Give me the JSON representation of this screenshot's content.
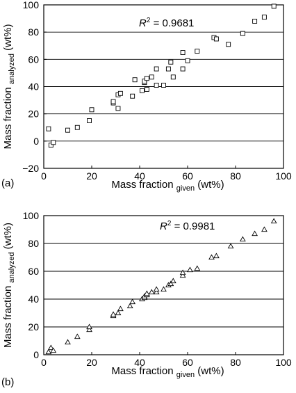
{
  "chart_data": [
    {
      "panel_label": "(a)",
      "type": "scatter",
      "marker": "square",
      "annotation": {
        "prefix": "R",
        "sup": "2",
        "value": " = 0.9681"
      },
      "xlabel": {
        "main": "Mass fraction ",
        "sub": "given",
        "unit": " (wt%)"
      },
      "ylabel": {
        "main": "Mass fraction ",
        "sub": "analyzed",
        "unit": " (wt%)"
      },
      "xlim": [
        0,
        100
      ],
      "ylim": [
        -20,
        100
      ],
      "xticks": [
        0,
        20,
        40,
        60,
        80,
        100
      ],
      "yticks": [
        -20,
        0,
        20,
        40,
        60,
        80,
        100
      ],
      "grid": "horizontal",
      "points": [
        [
          2,
          9
        ],
        [
          3,
          -3
        ],
        [
          4,
          -1
        ],
        [
          10,
          8
        ],
        [
          14,
          10
        ],
        [
          19,
          15
        ],
        [
          20,
          23
        ],
        [
          29,
          28
        ],
        [
          29,
          29
        ],
        [
          31,
          34
        ],
        [
          31,
          24
        ],
        [
          32,
          35
        ],
        [
          37,
          33
        ],
        [
          38,
          45
        ],
        [
          41,
          37
        ],
        [
          42,
          43
        ],
        [
          42,
          44
        ],
        [
          43,
          38
        ],
        [
          43,
          46
        ],
        [
          45,
          47
        ],
        [
          47,
          53
        ],
        [
          47,
          41
        ],
        [
          50,
          41
        ],
        [
          52,
          53
        ],
        [
          53,
          58
        ],
        [
          54,
          47
        ],
        [
          58,
          53
        ],
        [
          58,
          65
        ],
        [
          60,
          59
        ],
        [
          64,
          66
        ],
        [
          71,
          76
        ],
        [
          72,
          75
        ],
        [
          77,
          71
        ],
        [
          83,
          79
        ],
        [
          88,
          88
        ],
        [
          92,
          91
        ],
        [
          96,
          99
        ]
      ]
    },
    {
      "panel_label": "(b)",
      "type": "scatter",
      "marker": "triangle",
      "annotation": {
        "prefix": "R",
        "sup": "2",
        "value": " = 0.9981"
      },
      "xlabel": {
        "main": "Mass fraction ",
        "sub": "given",
        "unit": " (wt%)"
      },
      "ylabel": {
        "main": "Mass fraction ",
        "sub": "analyzed",
        "unit": " (wt%)"
      },
      "xlim": [
        0,
        100
      ],
      "ylim": [
        0,
        100
      ],
      "xticks": [
        0,
        20,
        40,
        60,
        80,
        100
      ],
      "yticks": [
        0,
        20,
        40,
        60,
        80,
        100
      ],
      "grid": "horizontal",
      "points": [
        [
          2,
          2
        ],
        [
          3,
          5
        ],
        [
          4,
          3
        ],
        [
          10,
          9
        ],
        [
          14,
          13
        ],
        [
          19,
          18
        ],
        [
          19,
          20
        ],
        [
          29,
          28
        ],
        [
          29,
          29
        ],
        [
          31,
          30
        ],
        [
          32,
          33
        ],
        [
          36,
          35
        ],
        [
          37,
          38
        ],
        [
          41,
          40
        ],
        [
          42,
          41
        ],
        [
          42,
          42
        ],
        [
          43,
          43
        ],
        [
          43,
          44
        ],
        [
          45,
          45
        ],
        [
          47,
          45
        ],
        [
          47,
          47
        ],
        [
          50,
          47
        ],
        [
          52,
          50
        ],
        [
          53,
          51
        ],
        [
          54,
          53
        ],
        [
          58,
          57
        ],
        [
          58,
          59
        ],
        [
          61,
          61
        ],
        [
          64,
          62
        ],
        [
          70,
          70
        ],
        [
          72,
          71
        ],
        [
          78,
          78
        ],
        [
          83,
          83
        ],
        [
          88,
          87
        ],
        [
          92,
          90
        ],
        [
          96,
          96
        ]
      ]
    }
  ]
}
